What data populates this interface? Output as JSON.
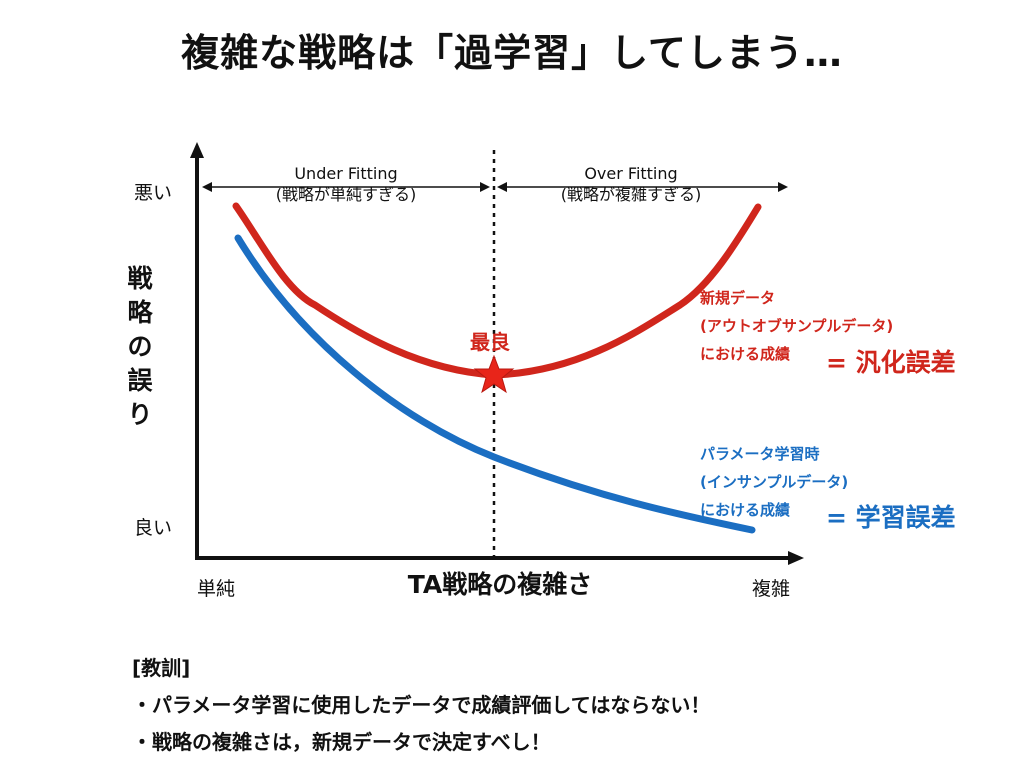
{
  "title": "複雑な戦略は「過学習」してしまう…",
  "y_axis": {
    "label_chars": [
      "戦",
      "略",
      "の",
      "誤",
      "り"
    ],
    "top": "悪い",
    "bottom": "良い"
  },
  "x_axis": {
    "title": "TA戦略の複雑さ",
    "left": "単純",
    "right": "複雑"
  },
  "regions": {
    "under": {
      "title": "Under Fitting",
      "sub": "(戦略が単純すぎる)"
    },
    "over": {
      "title": "Over Fitting",
      "sub": "(戦略が複雑すぎる)"
    }
  },
  "best_label": "最良",
  "test_curve": {
    "lines": [
      "新規データ",
      "(アウトオブサンプルデータ)",
      "における成績"
    ],
    "eq": "= 汎化誤差",
    "color": "#d0261c"
  },
  "train_curve": {
    "lines": [
      "パラメータ学習時",
      "(インサンプルデータ)",
      "における成績"
    ],
    "eq": "= 学習誤差",
    "color": "#1b6ec2"
  },
  "lesson": {
    "heading": "[教訓]",
    "items": [
      "・パラメータ学習に使用したデータで成績評価してはならない！",
      "・戦略の複雑さは，新規データで決定すべし！"
    ]
  }
}
